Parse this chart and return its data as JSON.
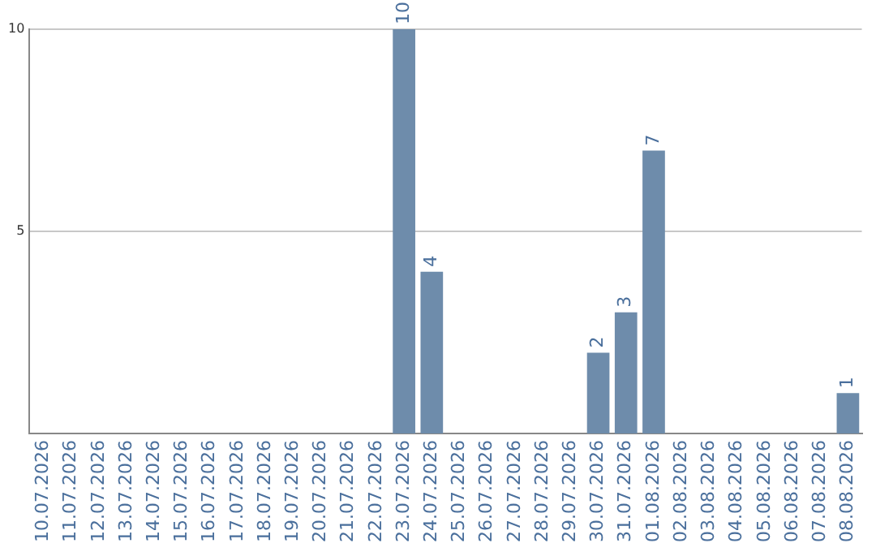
{
  "chart_data": {
    "type": "bar",
    "categories": [
      "10.07.2026",
      "11.07.2026",
      "12.07.2026",
      "13.07.2026",
      "14.07.2026",
      "15.07.2026",
      "16.07.2026",
      "17.07.2026",
      "18.07.2026",
      "19.07.2026",
      "20.07.2026",
      "21.07.2026",
      "22.07.2026",
      "23.07.2026",
      "24.07.2026",
      "25.07.2026",
      "26.07.2026",
      "27.07.2026",
      "28.07.2026",
      "29.07.2026",
      "30.07.2026",
      "31.07.2026",
      "01.08.2026",
      "02.08.2026",
      "03.08.2026",
      "04.08.2026",
      "05.08.2026",
      "06.08.2026",
      "07.08.2026",
      "08.08.2026"
    ],
    "values": [
      null,
      null,
      null,
      null,
      null,
      null,
      null,
      null,
      null,
      null,
      null,
      null,
      null,
      10,
      4,
      null,
      null,
      null,
      null,
      null,
      2,
      3,
      7,
      null,
      null,
      null,
      null,
      null,
      null,
      1
    ],
    "color": "#6e8cab",
    "ylim": [
      0,
      10
    ],
    "yticks": [
      5,
      10
    ],
    "grid": "y",
    "legend": false,
    "data_labels": true
  }
}
